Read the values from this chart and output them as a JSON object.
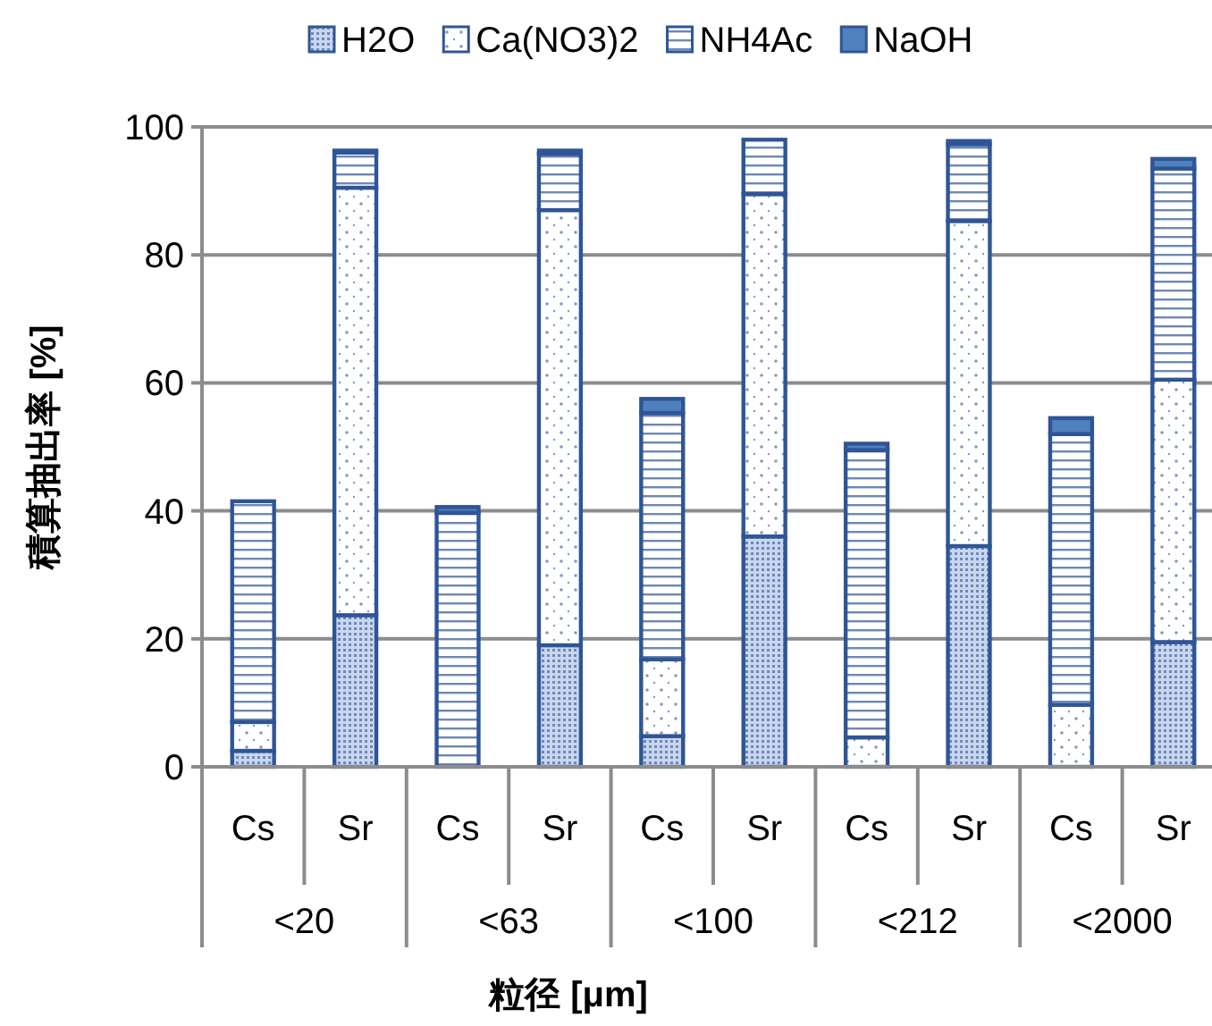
{
  "chart_data": {
    "type": "bar",
    "stacked": true,
    "categories": [
      "Cs",
      "Sr",
      "Cs",
      "Sr",
      "Cs",
      "Sr",
      "Cs",
      "Sr",
      "Cs",
      "Sr"
    ],
    "annotations": [
      "<20",
      "<63",
      "<100",
      "<212",
      "<2000"
    ],
    "series": [
      {
        "name": "H2O",
        "color": "#2f5597",
        "values": [
          2.5,
          23.7,
          null,
          19,
          4.8,
          36,
          0,
          34.5,
          0,
          19.5
        ]
      },
      {
        "name": "Ca(NO3)2",
        "color": "#2f5597",
        "values": [
          4.5,
          66.8,
          null,
          68,
          12,
          53.5,
          4.6,
          50.8,
          9.7,
          41
        ]
      },
      {
        "name": "NH4Ac",
        "color": "#2f5597",
        "values": [
          34.5,
          5.5,
          39.7,
          8.8,
          38.5,
          8.5,
          44.9,
          12,
          42.3,
          33
        ]
      },
      {
        "name": "NaOH",
        "color": "#4f81bd",
        "values": [
          0,
          0.3,
          0.9,
          0.5,
          2.2,
          0,
          1,
          0.5,
          2.5,
          1.5
        ]
      }
    ],
    "xlabel": "粒径 [μm]",
    "ylabel": "積算抽出率 [%]",
    "ylim": [
      0,
      100
    ],
    "yticks": [
      0,
      20,
      40,
      60,
      80,
      100
    ],
    "grid": "y",
    "legend": "top"
  }
}
